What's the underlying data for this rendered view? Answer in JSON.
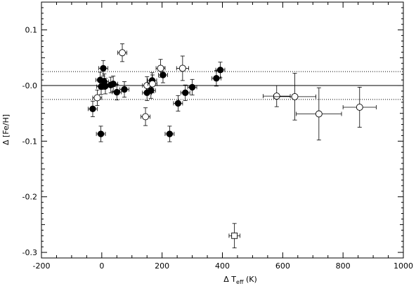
{
  "chart_data": {
    "type": "scatter",
    "xlabel_delta": "Δ",
    "xlabel_main": "T",
    "xlabel_sub": "eff",
    "xlabel_unit": "(K)",
    "ylabel": "Δ [Fe/H]",
    "xlim": [
      -200,
      1000
    ],
    "ylim": [
      -0.31,
      0.15
    ],
    "xticks": [
      -200,
      0,
      200,
      400,
      600,
      800,
      1000
    ],
    "xtick_labels": [
      "-200",
      "0",
      "200",
      "400",
      "600",
      "800",
      "1000"
    ],
    "yticks": [
      0.1,
      0.0,
      -0.1,
      -0.2,
      -0.3
    ],
    "ytick_labels": [
      "0.1",
      "-0.0",
      "-0.1",
      "-0.2",
      "-0.3"
    ],
    "reference_lines": [
      {
        "y": 0.0,
        "style": "solid"
      },
      {
        "y": 0.025,
        "style": "dotted"
      },
      {
        "y": -0.025,
        "style": "dotted"
      }
    ],
    "series": [
      {
        "marker": "filled-circle",
        "points": [
          {
            "x": -30,
            "y": -0.042,
            "xerr": 15,
            "yerr": 0.014
          },
          {
            "x": -5,
            "y": 0.01,
            "xerr": 15,
            "yerr": 0.014
          },
          {
            "x": -2,
            "y": -0.002,
            "xerr": 15,
            "yerr": 0.014
          },
          {
            "x": 5,
            "y": 0.031,
            "xerr": 15,
            "yerr": 0.014
          },
          {
            "x": 8,
            "y": 0.007,
            "xerr": 15,
            "yerr": 0.014
          },
          {
            "x": 12,
            "y": -0.001,
            "xerr": 15,
            "yerr": 0.014
          },
          {
            "x": -3,
            "y": -0.087,
            "xerr": 15,
            "yerr": 0.014
          },
          {
            "x": 30,
            "y": 0.001,
            "xerr": 15,
            "yerr": 0.014
          },
          {
            "x": 38,
            "y": 0.003,
            "xerr": 15,
            "yerr": 0.014
          },
          {
            "x": 50,
            "y": -0.012,
            "xerr": 15,
            "yerr": 0.014
          },
          {
            "x": 75,
            "y": -0.007,
            "xerr": 15,
            "yerr": 0.014
          },
          {
            "x": 150,
            "y": -0.013,
            "xerr": 15,
            "yerr": 0.014
          },
          {
            "x": 163,
            "y": -0.009,
            "xerr": 15,
            "yerr": 0.014
          },
          {
            "x": 167,
            "y": 0.009,
            "xerr": 15,
            "yerr": 0.014
          },
          {
            "x": 203,
            "y": 0.019,
            "xerr": 15,
            "yerr": 0.014
          },
          {
            "x": 225,
            "y": -0.087,
            "xerr": 15,
            "yerr": 0.014
          },
          {
            "x": 253,
            "y": -0.032,
            "xerr": 15,
            "yerr": 0.014
          },
          {
            "x": 277,
            "y": -0.013,
            "xerr": 15,
            "yerr": 0.014
          },
          {
            "x": 300,
            "y": -0.003,
            "xerr": 15,
            "yerr": 0.014
          },
          {
            "x": 380,
            "y": 0.013,
            "xerr": 15,
            "yerr": 0.014
          },
          {
            "x": 393,
            "y": 0.028,
            "xerr": 15,
            "yerr": 0.014
          }
        ]
      },
      {
        "marker": "open-circle",
        "points": [
          {
            "x": -15,
            "y": -0.022,
            "xerr": 15,
            "yerr": 0.014
          },
          {
            "x": 68,
            "y": 0.059,
            "xerr": 15,
            "yerr": 0.016
          },
          {
            "x": 145,
            "y": -0.056,
            "xerr": 15,
            "yerr": 0.016
          },
          {
            "x": 150,
            "y": 0.0,
            "xerr": 15,
            "yerr": 0.016
          },
          {
            "x": 168,
            "y": 0.003,
            "xerr": 15,
            "yerr": 0.016
          },
          {
            "x": 195,
            "y": 0.031,
            "xerr": 15,
            "yerr": 0.016
          },
          {
            "x": 268,
            "y": 0.031,
            "xerr": 20,
            "yerr": 0.022
          },
          {
            "x": 580,
            "y": -0.019,
            "xerr": 45,
            "yerr": 0.019
          },
          {
            "x": 640,
            "y": -0.02,
            "xerr": 70,
            "yerr": 0.042
          },
          {
            "x": 720,
            "y": -0.051,
            "xerr": 75,
            "yerr": 0.047
          },
          {
            "x": 855,
            "y": -0.039,
            "xerr": 55,
            "yerr": 0.036
          }
        ]
      },
      {
        "marker": "open-square",
        "points": [
          {
            "x": 440,
            "y": -0.27,
            "xerr": 18,
            "yerr": 0.022
          }
        ]
      }
    ]
  }
}
